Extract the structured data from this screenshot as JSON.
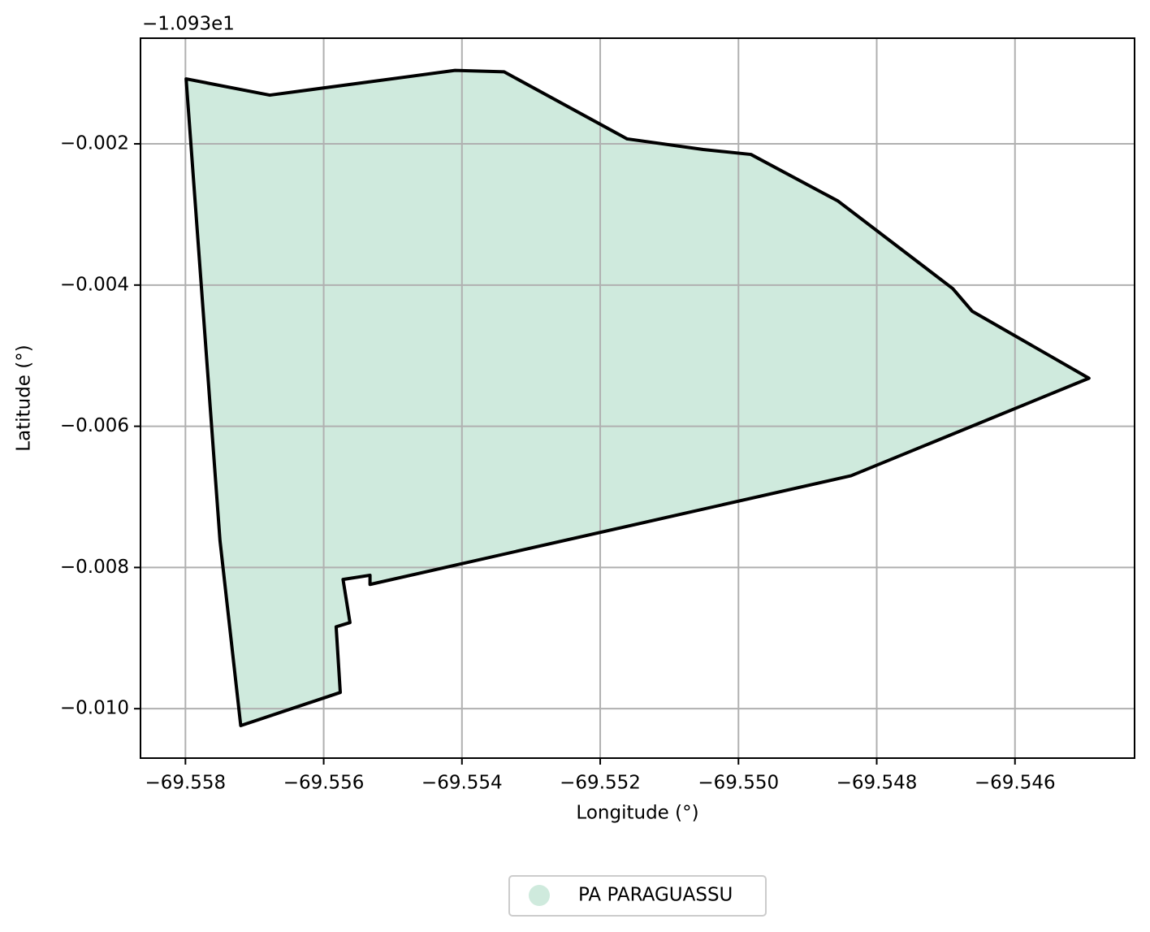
{
  "chart_data": {
    "type": "polygon",
    "xlabel": "Longitude (°)",
    "ylabel": "Latitude (°)",
    "y_offset_label": "−1.093e1",
    "xlim": [
      -69.55865,
      -69.54427
    ],
    "ylim": [
      -0.0107,
      -0.0005036
    ],
    "xticks": [
      {
        "value": -69.558,
        "label": "−69.558"
      },
      {
        "value": -69.556,
        "label": "−69.556"
      },
      {
        "value": -69.554,
        "label": "−69.554"
      },
      {
        "value": -69.552,
        "label": "−69.552"
      },
      {
        "value": -69.55,
        "label": "−69.550"
      },
      {
        "value": -69.548,
        "label": "−69.548"
      },
      {
        "value": -69.546,
        "label": "−69.546"
      }
    ],
    "yticks": [
      {
        "value": -0.002,
        "label": "−0.002"
      },
      {
        "value": -0.004,
        "label": "−0.004"
      },
      {
        "value": -0.006,
        "label": "−0.006"
      },
      {
        "value": -0.008,
        "label": "−0.008"
      },
      {
        "value": -0.01,
        "label": "−0.010"
      }
    ],
    "grid": true,
    "legend": "bottom",
    "series": [
      {
        "name": "PA PARAGUASSU",
        "color": "#cfeadd",
        "edgecolor": "#000000",
        "x": [
          -69.55799,
          -69.55678,
          -69.5541,
          -69.55339,
          -69.55161,
          -69.55051,
          -69.54982,
          -69.54856,
          -69.5469,
          -69.54662,
          -69.54493,
          -69.54837,
          -69.55533,
          -69.55533,
          -69.55572,
          -69.55562,
          -69.55582,
          -69.55576,
          -69.5572,
          -69.5575
        ],
        "values": [
          -0.00108,
          -0.00131,
          -0.00096,
          -0.00098,
          -0.00193,
          -0.00208,
          -0.00215,
          -0.00281,
          -0.00405,
          -0.00437,
          -0.00532,
          -0.0067,
          -0.00824,
          -0.00811,
          -0.00817,
          -0.00878,
          -0.00884,
          -0.00977,
          -0.01024,
          -0.00762
        ]
      }
    ]
  }
}
